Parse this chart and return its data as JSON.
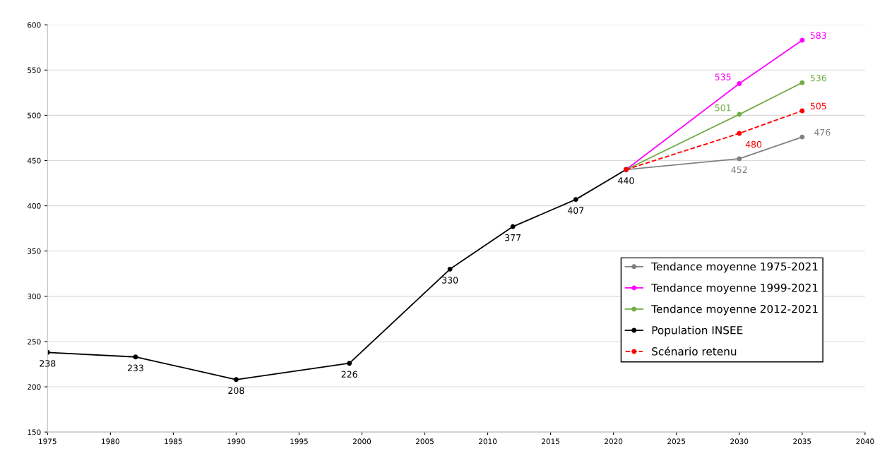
{
  "chart_data": {
    "type": "line",
    "xlim": [
      1975,
      2040
    ],
    "xticks": [
      1975,
      1980,
      1985,
      1990,
      1995,
      2000,
      2005,
      2010,
      2015,
      2020,
      2025,
      2030,
      2035,
      2040
    ],
    "ylim": [
      150,
      600
    ],
    "yticks": [
      150,
      200,
      250,
      300,
      350,
      400,
      450,
      500,
      550,
      600
    ],
    "grid": "y",
    "legend": "right",
    "marker": "circle",
    "series": [
      {
        "name": "Tendance moyenne 1975-2021",
        "color": "#808080",
        "x": [
          2021,
          2030,
          2035
        ],
        "values": [
          440,
          452,
          476
        ],
        "value_labels": [
          null,
          "452",
          "476"
        ]
      },
      {
        "name": "Tendance moyenne 1999-2021",
        "color": "#ff00ff",
        "x": [
          2021,
          2030,
          2035
        ],
        "values": [
          440,
          535,
          583
        ],
        "value_labels": [
          null,
          "535",
          "583"
        ]
      },
      {
        "name": "Tendance moyenne 2012-2021",
        "color": "#70ad47",
        "x": [
          2021,
          2030,
          2035
        ],
        "values": [
          440,
          501,
          536
        ],
        "value_labels": [
          null,
          "501",
          "536"
        ]
      },
      {
        "name": "Population INSEE",
        "color": "#000000",
        "x": [
          1975,
          1982,
          1990,
          1999,
          2007,
          2012,
          2017,
          2021
        ],
        "values": [
          238,
          233,
          208,
          226,
          330,
          377,
          407,
          440
        ],
        "value_labels": [
          "238",
          "233",
          "208",
          "226",
          "330",
          "377",
          "407",
          "440"
        ]
      },
      {
        "name": "Scénario retenu",
        "color": "#ff0000",
        "line_style": "dashed",
        "x": [
          2021,
          2030,
          2035
        ],
        "values": [
          440,
          480,
          505
        ],
        "value_labels": [
          null,
          "480",
          "505"
        ]
      }
    ]
  }
}
